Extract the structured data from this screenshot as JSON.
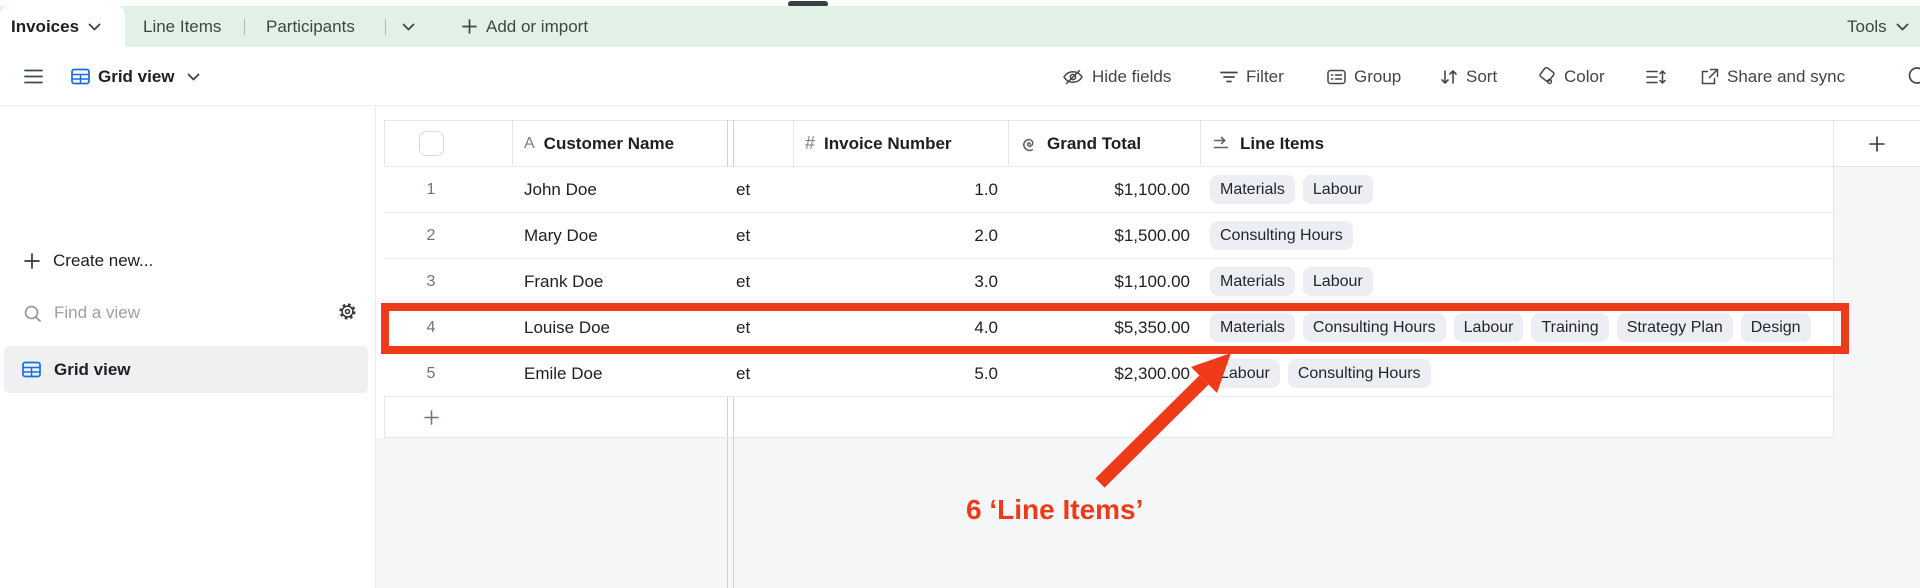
{
  "tabBar": {
    "activeTab": {
      "label": "Invoices"
    },
    "tabs": [
      {
        "label": "Line Items"
      },
      {
        "label": "Participants"
      }
    ],
    "addOrImport": "Add or import",
    "tools": "Tools"
  },
  "toolbar": {
    "viewName": "Grid view",
    "hideFields": "Hide fields",
    "filter": "Filter",
    "group": "Group",
    "sort": "Sort",
    "color": "Color",
    "shareSync": "Share and sync"
  },
  "sidebar": {
    "createNew": "Create new...",
    "findViewPlaceholder": "Find a view",
    "views": [
      {
        "label": "Grid view",
        "selected": true
      }
    ]
  },
  "table": {
    "columns": {
      "customer": {
        "label": "Customer Name",
        "icon": "A"
      },
      "invoice": {
        "label": "Invoice Number",
        "icon": "#"
      },
      "grandTotal": {
        "label": "Grand Total",
        "icon": "rollup-spiral"
      },
      "lineItems": {
        "label": "Line Items",
        "icon": "linked-record"
      }
    },
    "rows": [
      {
        "num": "1",
        "name": "John Doe",
        "sliver": "et",
        "invoice": "1.0",
        "total": "$1,100.00",
        "tags": [
          "Materials",
          "Labour"
        ]
      },
      {
        "num": "2",
        "name": "Mary Doe",
        "sliver": "et",
        "invoice": "2.0",
        "total": "$1,500.00",
        "tags": [
          "Consulting Hours"
        ]
      },
      {
        "num": "3",
        "name": "Frank Doe",
        "sliver": "et",
        "invoice": "3.0",
        "total": "$1,100.00",
        "tags": [
          "Materials",
          "Labour"
        ]
      },
      {
        "num": "4",
        "name": "Louise Doe",
        "sliver": "et",
        "invoice": "4.0",
        "total": "$5,350.00",
        "tags": [
          "Materials",
          "Consulting Hours",
          "Labour",
          "Training",
          "Strategy Plan",
          "Design"
        ],
        "highlighted": true
      },
      {
        "num": "5",
        "name": "Emile Doe",
        "sliver": "et",
        "invoice": "5.0",
        "total": "$2,300.00",
        "tags": [
          "Labour",
          "Consulting Hours"
        ]
      }
    ]
  },
  "annotation": {
    "label": "6 ‘Line Items’"
  },
  "colors": {
    "accentRed": "#ee3a18",
    "tabBarGreen": "#e2f1e5",
    "airtableBlue": "#166ee1",
    "pillBackground": "#eceef4",
    "selectedViewBackground": "#eef0f2"
  }
}
